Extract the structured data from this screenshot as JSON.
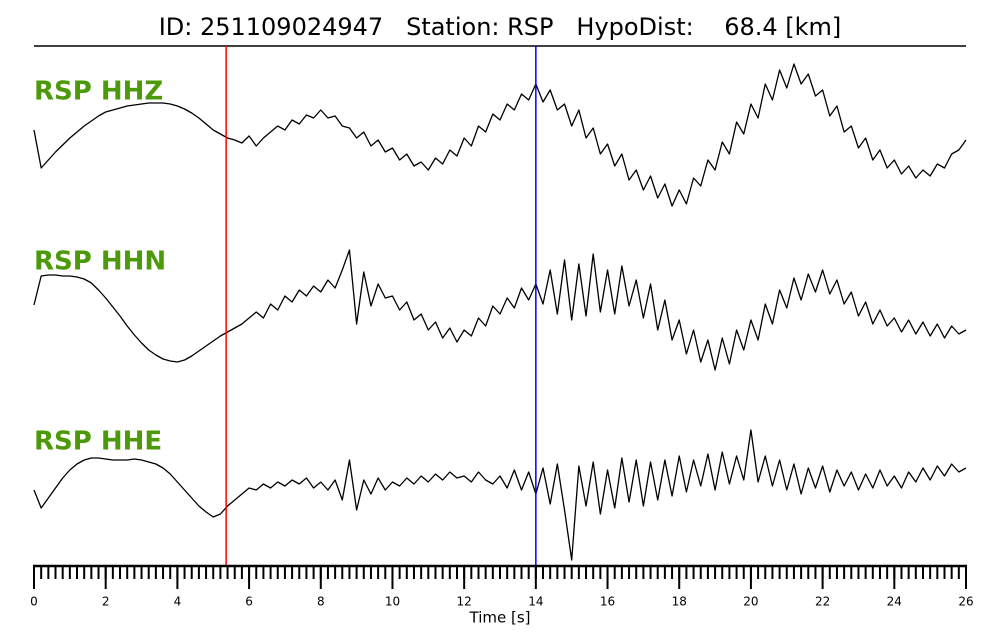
{
  "chart_data": {
    "type": "line",
    "title": "ID: 251109024947   Station: RSP   HypoDist:    68.4 [km]",
    "xlabel": "Time [s]",
    "xlim": [
      0,
      26
    ],
    "xticks": [
      0,
      2,
      4,
      6,
      8,
      10,
      12,
      14,
      16,
      18,
      20,
      22,
      24,
      26
    ],
    "ylim": [
      -85,
      85
    ],
    "label_color": "#4c9a0a",
    "picks": [
      {
        "value": 5.36,
        "color": "#ff0000"
      },
      {
        "value": 14.0,
        "color": "#0000ff"
      }
    ],
    "x": [
      0,
      0.2,
      0.4,
      0.6,
      0.8,
      1,
      1.2,
      1.4,
      1.6,
      1.8,
      2,
      2.2,
      2.4,
      2.6,
      2.8,
      3,
      3.2,
      3.4,
      3.6,
      3.8,
      4,
      4.2,
      4.4,
      4.6,
      4.8,
      5,
      5.2,
      5.4,
      5.6,
      5.8,
      6,
      6.2,
      6.4,
      6.6,
      6.8,
      7,
      7.2,
      7.4,
      7.6,
      7.8,
      8,
      8.2,
      8.4,
      8.6,
      8.8,
      9,
      9.2,
      9.4,
      9.6,
      9.8,
      10,
      10.2,
      10.4,
      10.6,
      10.8,
      11,
      11.2,
      11.4,
      11.6,
      11.8,
      12,
      12.2,
      12.4,
      12.6,
      12.8,
      13,
      13.2,
      13.4,
      13.6,
      13.8,
      14,
      14.2,
      14.4,
      14.6,
      14.8,
      15,
      15.2,
      15.4,
      15.6,
      15.8,
      16,
      16.2,
      16.4,
      16.6,
      16.8,
      17,
      17.2,
      17.4,
      17.6,
      17.8,
      18,
      18.2,
      18.4,
      18.6,
      18.8,
      19,
      19.2,
      19.4,
      19.6,
      19.8,
      20,
      20.2,
      20.4,
      20.6,
      20.8,
      21,
      21.2,
      21.4,
      21.6,
      21.8,
      22,
      22.2,
      22.4,
      22.6,
      22.8,
      23,
      23.2,
      23.4,
      23.6,
      23.8,
      24,
      24.2,
      24.4,
      24.6,
      24.8,
      25,
      25.2,
      25.4,
      25.6,
      25.8,
      26
    ],
    "series": [
      {
        "name": "RSP HHZ",
        "color": "#000000",
        "values": [
          10,
          -28,
          -20,
          -12,
          -5,
          2,
          8,
          14,
          19,
          24,
          28,
          30,
          32,
          34,
          35,
          36,
          37,
          37,
          37,
          36,
          34,
          31,
          27,
          22,
          16,
          10,
          6,
          2,
          0,
          -3,
          4,
          -6,
          2,
          8,
          14,
          10,
          20,
          16,
          25,
          22,
          30,
          22,
          24,
          14,
          12,
          2,
          8,
          -6,
          0,
          -12,
          -8,
          -20,
          -14,
          -26,
          -22,
          -30,
          -18,
          -24,
          -10,
          -16,
          2,
          -6,
          14,
          8,
          26,
          20,
          36,
          30,
          46,
          40,
          56,
          38,
          50,
          30,
          36,
          14,
          30,
          2,
          12,
          -14,
          -4,
          -26,
          -14,
          -40,
          -30,
          -50,
          -36,
          -58,
          -44,
          -66,
          -50,
          -64,
          -38,
          -46,
          -20,
          -30,
          -2,
          -14,
          18,
          6,
          36,
          22,
          56,
          40,
          70,
          52,
          76,
          56,
          66,
          44,
          50,
          24,
          34,
          8,
          14,
          -8,
          2,
          -20,
          -10,
          -28,
          -20,
          -34,
          -26,
          -38,
          -30,
          -36,
          -24,
          -28,
          -14,
          -10,
          0
        ]
      },
      {
        "name": "RSP HHN",
        "color": "#000000",
        "values": [
          5,
          34,
          35,
          35,
          34,
          34,
          33,
          31,
          27,
          20,
          12,
          3,
          -6,
          -16,
          -25,
          -33,
          -40,
          -45,
          -49,
          -51,
          -52,
          -50,
          -46,
          -41,
          -36,
          -31,
          -26,
          -22,
          -18,
          -14,
          -8,
          -2,
          -8,
          6,
          0,
          14,
          8,
          20,
          14,
          24,
          18,
          30,
          22,
          40,
          60,
          -14,
          38,
          4,
          26,
          12,
          14,
          0,
          8,
          -10,
          -4,
          -20,
          -12,
          -28,
          -18,
          -32,
          -20,
          -26,
          -8,
          -16,
          4,
          -4,
          12,
          2,
          22,
          10,
          26,
          6,
          40,
          -4,
          50,
          -10,
          46,
          -6,
          56,
          -2,
          40,
          -4,
          44,
          4,
          30,
          -8,
          26,
          -20,
          10,
          -30,
          -10,
          -44,
          -20,
          -52,
          -30,
          -60,
          -28,
          -54,
          -20,
          -40,
          -10,
          -30,
          6,
          -14,
          20,
          2,
          32,
          10,
          36,
          18,
          40,
          16,
          30,
          6,
          18,
          -6,
          8,
          -14,
          0,
          -16,
          -8,
          -22,
          -10,
          -24,
          -12,
          -26,
          -14,
          -28,
          -16,
          -24,
          -20
        ]
      },
      {
        "name": "RSP HHE",
        "color": "#000000",
        "values": [
          0,
          -18,
          -8,
          2,
          12,
          20,
          26,
          30,
          32,
          32,
          31,
          30,
          30,
          30,
          31,
          30,
          28,
          26,
          22,
          16,
          8,
          0,
          -8,
          -16,
          -22,
          -27,
          -24,
          -16,
          -10,
          -4,
          2,
          0,
          6,
          2,
          8,
          4,
          10,
          6,
          12,
          2,
          8,
          0,
          10,
          -10,
          30,
          -20,
          10,
          -4,
          12,
          0,
          8,
          4,
          12,
          6,
          14,
          8,
          16,
          10,
          18,
          12,
          14,
          8,
          18,
          10,
          6,
          14,
          2,
          20,
          0,
          18,
          -4,
          22,
          -14,
          26,
          -20,
          -70,
          24,
          -16,
          28,
          -24,
          20,
          -18,
          32,
          -12,
          30,
          -16,
          28,
          -10,
          30,
          -6,
          34,
          -2,
          30,
          4,
          36,
          0,
          38,
          6,
          34,
          10,
          60,
          8,
          34,
          4,
          30,
          0,
          26,
          -4,
          22,
          2,
          24,
          -2,
          20,
          4,
          18,
          0,
          16,
          2,
          20,
          4,
          14,
          2,
          18,
          8,
          22,
          10,
          24,
          14,
          26,
          18,
          22
        ]
      }
    ]
  }
}
